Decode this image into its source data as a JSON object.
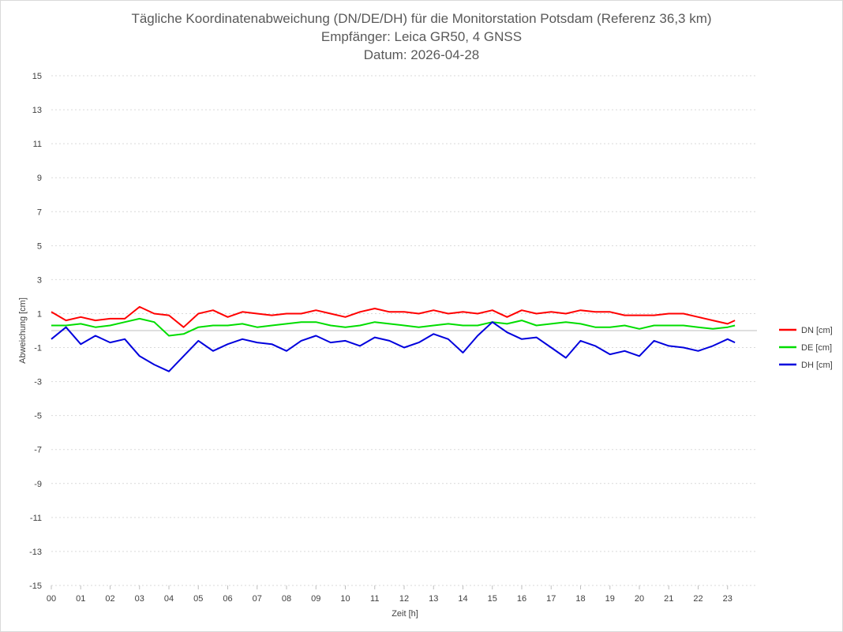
{
  "chart_data": {
    "type": "line",
    "title": [
      "Tägliche Koordinatenabweichung (DN/DE/DH) für die Monitorstation Potsdam (Referenz 36,3 km)",
      "Empfänger: Leica GR50, 4 GNSS",
      "Datum: 2026-04-28"
    ],
    "xlabel": "Zeit [h]",
    "ylabel": "Abweichung [cm]",
    "xlim": [
      0,
      24
    ],
    "ylim": [
      -15,
      15
    ],
    "x_ticks": [
      "00",
      "01",
      "02",
      "03",
      "04",
      "05",
      "06",
      "07",
      "08",
      "09",
      "10",
      "11",
      "12",
      "13",
      "14",
      "15",
      "16",
      "17",
      "18",
      "19",
      "20",
      "21",
      "22",
      "23"
    ],
    "y_ticks": [
      15,
      13,
      11,
      9,
      7,
      5,
      3,
      1,
      -1,
      -3,
      -5,
      -7,
      -9,
      -11,
      -13,
      -15
    ],
    "grid": true,
    "legend_position": "right",
    "x": [
      0,
      0.5,
      1,
      1.5,
      2,
      2.5,
      3,
      3.5,
      4,
      4.5,
      5,
      5.5,
      6,
      6.5,
      7,
      7.5,
      8,
      8.5,
      9,
      9.5,
      10,
      10.5,
      11,
      11.5,
      12,
      12.5,
      13,
      13.5,
      14,
      14.5,
      15,
      15.5,
      16,
      16.5,
      17,
      17.5,
      18,
      18.5,
      19,
      19.5,
      20,
      20.5,
      21,
      21.5,
      22,
      22.5,
      23,
      23.25
    ],
    "series": [
      {
        "name": "DN [cm]",
        "color": "#ff0000",
        "values": [
          1.1,
          0.6,
          0.8,
          0.6,
          0.7,
          0.7,
          1.4,
          1.0,
          0.9,
          0.2,
          1.0,
          1.2,
          0.8,
          1.1,
          1.0,
          0.9,
          1.0,
          1.0,
          1.2,
          1.0,
          0.8,
          1.1,
          1.3,
          1.1,
          1.1,
          1.0,
          1.2,
          1.0,
          1.1,
          1.0,
          1.2,
          0.8,
          1.2,
          1.0,
          1.1,
          1.0,
          1.2,
          1.1,
          1.1,
          0.9,
          0.9,
          0.9,
          1.0,
          1.0,
          0.8,
          0.6,
          0.4,
          0.6
        ]
      },
      {
        "name": "DE [cm]",
        "color": "#00dd00",
        "values": [
          0.3,
          0.3,
          0.4,
          0.2,
          0.3,
          0.5,
          0.7,
          0.5,
          -0.3,
          -0.2,
          0.2,
          0.3,
          0.3,
          0.4,
          0.2,
          0.3,
          0.4,
          0.5,
          0.5,
          0.3,
          0.2,
          0.3,
          0.5,
          0.4,
          0.3,
          0.2,
          0.3,
          0.4,
          0.3,
          0.3,
          0.5,
          0.4,
          0.6,
          0.3,
          0.4,
          0.5,
          0.4,
          0.2,
          0.2,
          0.3,
          0.1,
          0.3,
          0.3,
          0.3,
          0.2,
          0.1,
          0.2,
          0.3
        ]
      },
      {
        "name": "DH [cm]",
        "color": "#0000dd",
        "values": [
          -0.5,
          0.2,
          -0.8,
          -0.3,
          -0.7,
          -0.5,
          -1.5,
          -2.0,
          -2.4,
          -1.5,
          -0.6,
          -1.2,
          -0.8,
          -0.5,
          -0.7,
          -0.8,
          -1.2,
          -0.6,
          -0.3,
          -0.7,
          -0.6,
          -0.9,
          -0.4,
          -0.6,
          -1.0,
          -0.7,
          -0.2,
          -0.5,
          -1.3,
          -0.3,
          0.5,
          -0.1,
          -0.5,
          -0.4,
          -1.0,
          -1.6,
          -0.6,
          -0.9,
          -1.4,
          -1.2,
          -1.5,
          -0.6,
          -0.9,
          -1.0,
          -1.2,
          -0.9,
          -0.5,
          -0.7
        ]
      }
    ]
  }
}
